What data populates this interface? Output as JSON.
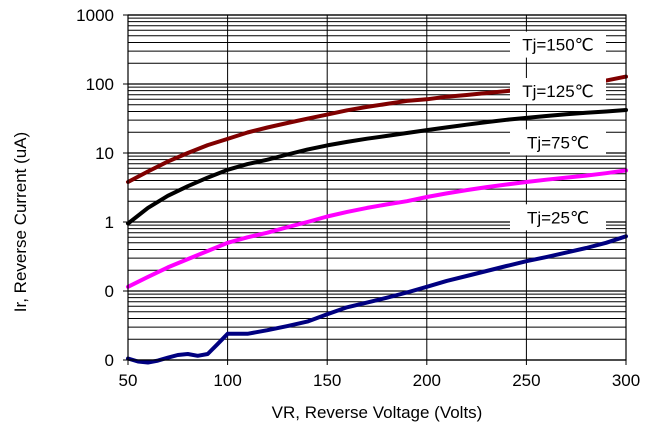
{
  "chart_data": {
    "type": "line",
    "xlabel": "VR, Reverse Voltage (Volts)",
    "ylabel": "Ir, Reverse Current (uA)",
    "xlim": [
      50,
      300
    ],
    "x_ticks": [
      "50",
      "100",
      "150",
      "200",
      "250",
      "300"
    ],
    "y_tick_labels": [
      "0",
      "0",
      "1",
      "10",
      "100",
      "1000"
    ],
    "y_scale": "log, 6 decades shown, top tick = 1000 uA",
    "y_decade_count": 5,
    "grid": true,
    "series": [
      {
        "name": "Tj=150℃",
        "color": "#800000",
        "x": [
          50,
          60,
          70,
          80,
          90,
          100,
          110,
          120,
          130,
          140,
          150,
          160,
          170,
          180,
          190,
          200,
          210,
          220,
          230,
          240,
          250,
          260,
          270,
          280,
          290,
          300
        ],
        "y": [
          3.8,
          5.4,
          7.5,
          10.0,
          13.0,
          16.0,
          19.8,
          23.4,
          27.2,
          31.4,
          36.0,
          41.6,
          46.6,
          51.5,
          56.9,
          60.0,
          65.4,
          69.2,
          74.0,
          78.9,
          84.8,
          90.0,
          96.2,
          102,
          112,
          128
        ]
      },
      {
        "name": "Tj=125℃",
        "color": "#000000",
        "x": [
          50,
          60,
          70,
          80,
          90,
          100,
          110,
          120,
          130,
          140,
          150,
          160,
          170,
          180,
          190,
          200,
          210,
          220,
          230,
          240,
          250,
          260,
          270,
          280,
          290,
          300
        ],
        "y": [
          0.95,
          1.6,
          2.4,
          3.3,
          4.4,
          5.7,
          6.9,
          8.0,
          9.5,
          11.2,
          12.9,
          14.5,
          16.1,
          17.7,
          19.5,
          21.5,
          23.5,
          25.7,
          28.0,
          30.3,
          32.3,
          34.4,
          36.4,
          38.4,
          40.0,
          42.0
        ]
      },
      {
        "name": "Tj=75℃",
        "color": "#ff00ff",
        "x": [
          50,
          60,
          70,
          80,
          90,
          100,
          110,
          120,
          130,
          140,
          150,
          160,
          170,
          180,
          190,
          200,
          210,
          220,
          230,
          240,
          250,
          260,
          270,
          280,
          290,
          300
        ],
        "y": [
          0.115,
          0.16,
          0.22,
          0.29,
          0.38,
          0.5,
          0.6,
          0.7,
          0.84,
          1.0,
          1.2,
          1.4,
          1.6,
          1.8,
          2.0,
          2.3,
          2.6,
          2.9,
          3.2,
          3.5,
          3.8,
          4.1,
          4.4,
          4.7,
          5.1,
          5.6
        ]
      },
      {
        "name": "Tj=25℃",
        "color": "#000080",
        "x": [
          50,
          55,
          60,
          65,
          70,
          75,
          80,
          85,
          90,
          95,
          100,
          110,
          120,
          130,
          140,
          150,
          160,
          170,
          180,
          190,
          200,
          210,
          220,
          230,
          240,
          250,
          260,
          270,
          280,
          290,
          300
        ],
        "y": [
          0.0105,
          0.0095,
          0.0092,
          0.0098,
          0.0108,
          0.0118,
          0.0122,
          0.0115,
          0.0122,
          0.017,
          0.024,
          0.024,
          0.027,
          0.031,
          0.036,
          0.046,
          0.058,
          0.068,
          0.08,
          0.095,
          0.115,
          0.14,
          0.165,
          0.195,
          0.23,
          0.27,
          0.31,
          0.36,
          0.42,
          0.5,
          0.62
        ]
      }
    ],
    "annotations": [
      {
        "text": "Tj=150℃",
        "series": 0
      },
      {
        "text": "Tj=125℃",
        "series": 1
      },
      {
        "text": "Tj=75℃",
        "series": 2
      },
      {
        "text": "Tj=25℃",
        "series": 3
      }
    ]
  }
}
